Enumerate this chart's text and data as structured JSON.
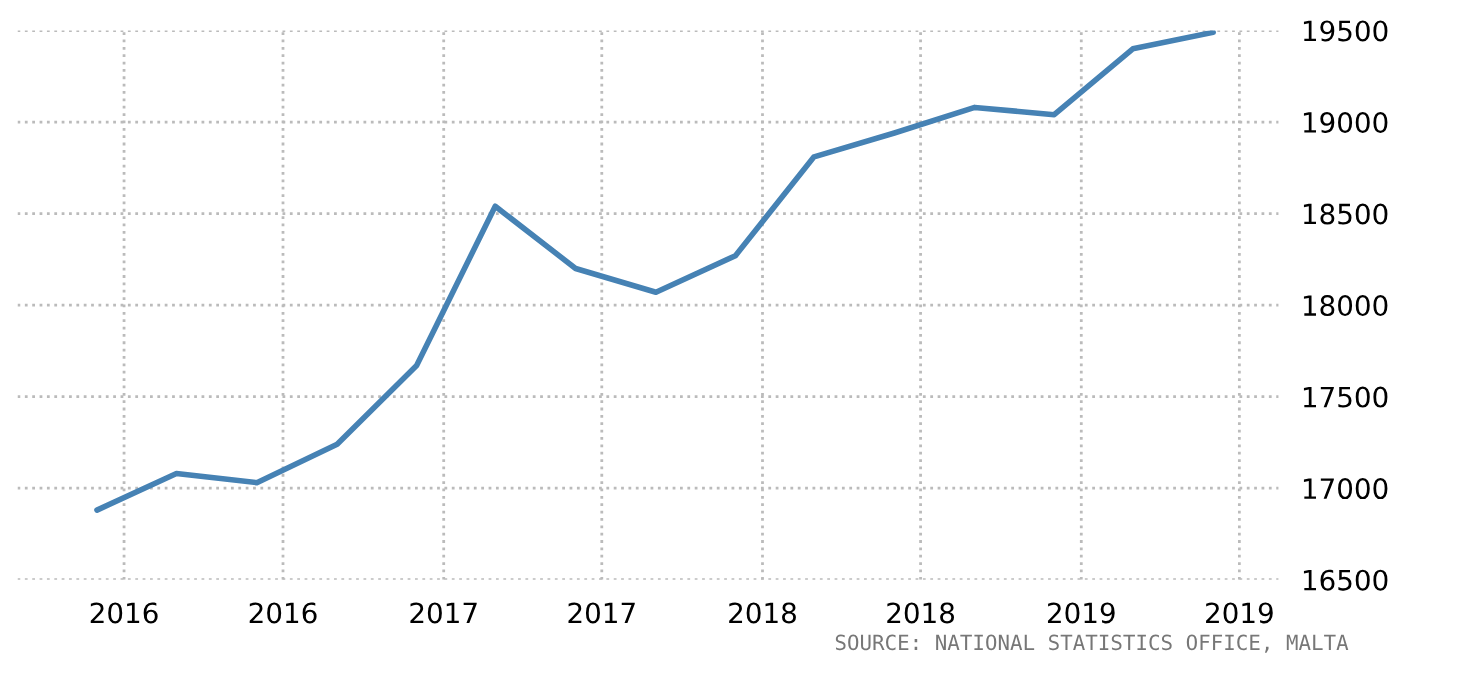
{
  "chart_data": {
    "type": "line",
    "x": [
      "2015-12",
      "2016-03",
      "2016-06",
      "2016-09",
      "2016-12",
      "2017-03",
      "2017-06",
      "2017-09",
      "2017-12",
      "2018-03",
      "2018-06",
      "2018-09",
      "2018-12",
      "2019-03",
      "2019-06"
    ],
    "series": [
      {
        "color": "#4682b4",
        "values": [
          16880,
          17080,
          17030,
          17240,
          17670,
          18540,
          18200,
          18070,
          18270,
          18810,
          18940,
          19080,
          19040,
          19400,
          19490
        ]
      }
    ],
    "xlim": [
      "2015-09-01",
      "2019-08-15"
    ],
    "xticks": [
      {
        "value": "2016-01",
        "label": "2016"
      },
      {
        "value": "2016-07",
        "label": "2016"
      },
      {
        "value": "2017-01",
        "label": "2017"
      },
      {
        "value": "2017-07",
        "label": "2017"
      },
      {
        "value": "2018-01",
        "label": "2018"
      },
      {
        "value": "2018-07",
        "label": "2018"
      },
      {
        "value": "2019-01",
        "label": "2019"
      },
      {
        "value": "2019-07",
        "label": "2019"
      }
    ],
    "ylim": [
      16500,
      19500
    ],
    "yticks": [
      16500,
      17000,
      17500,
      18000,
      18500,
      19000,
      19500
    ],
    "grid": true,
    "annotations": [
      "SOURCE: NATIONAL STATISTICS OFFICE, MALTA"
    ]
  }
}
